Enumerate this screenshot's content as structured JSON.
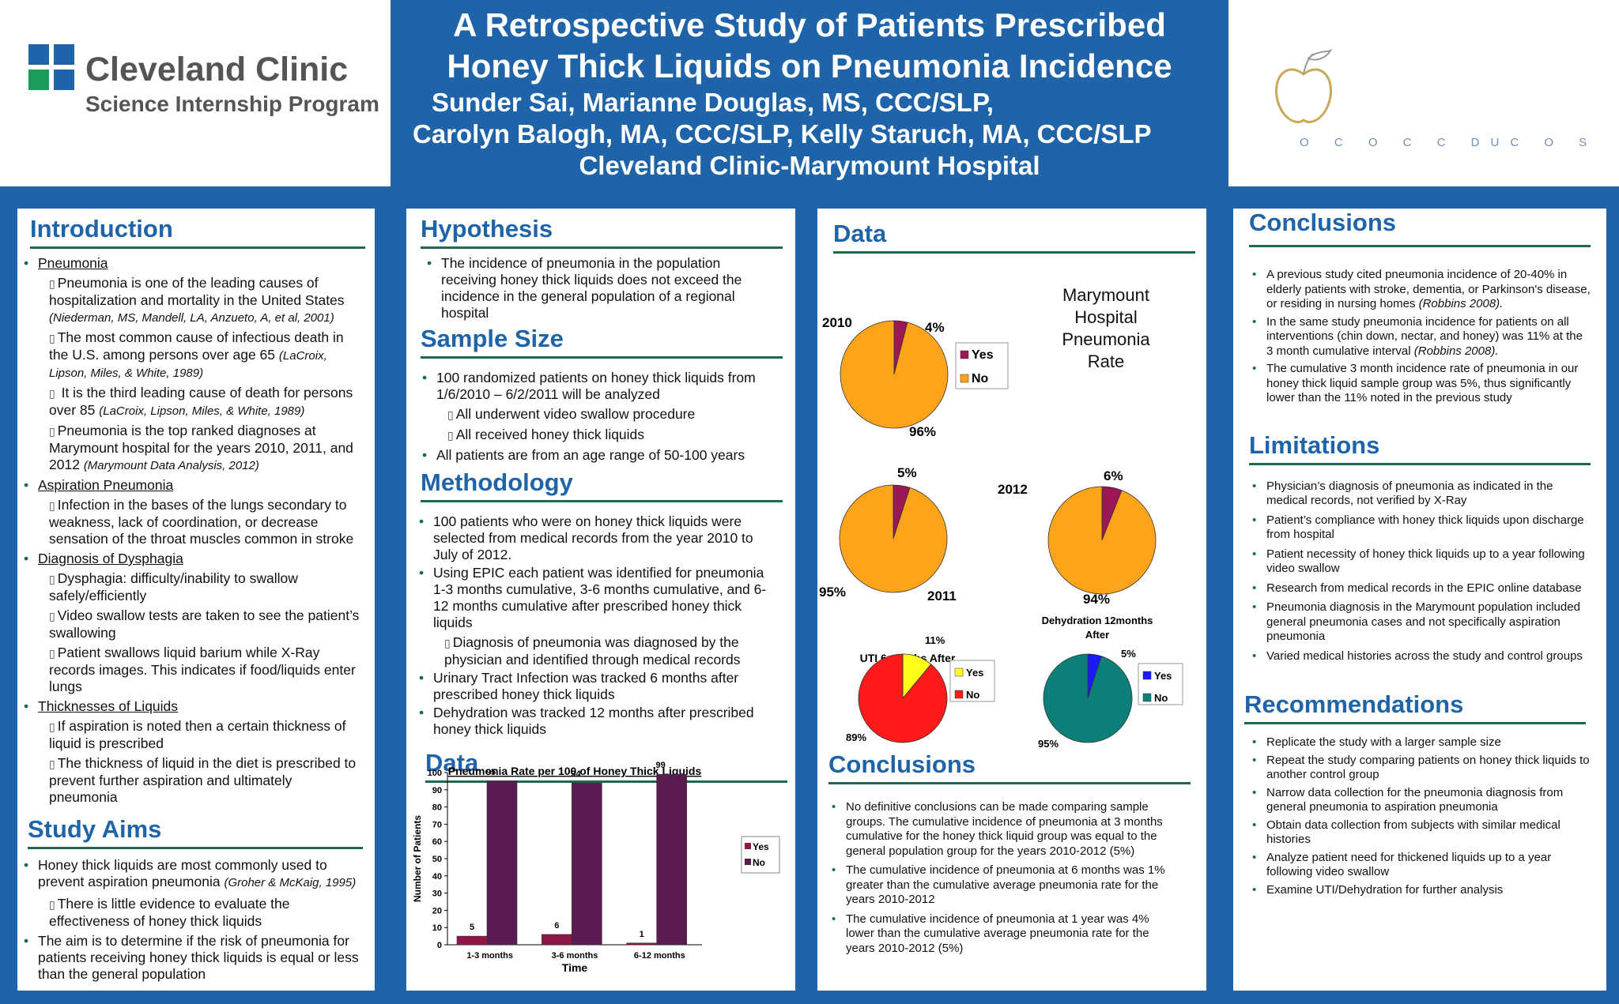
{
  "header": {
    "logo": {
      "name": "Cleveland Clinic",
      "subtitle": "Science Internship Program"
    },
    "title_line1": "A Retrospective Study of Patients Prescribed",
    "title_line2": "Honey Thick Liquids on Pneumonia Incidence",
    "authors_line1": "Sunder Sai, Marianne Douglas, MS, CCC/SLP,",
    "authors_line2": "Carolyn Balogh, MA, CCC/SLP, Kelly Staruch, MA, CCC/SLP",
    "affiliation": "Cleveland Clinic-Marymount Hospital",
    "right_faded_text": "O C O C C DUC O S"
  },
  "introduction": {
    "title": "Introduction",
    "items": [
      {
        "heading": "Pneumonia",
        "subs": [
          {
            "text": "Pneumonia is one of the leading causes of hospitalization and mortality in the United States",
            "cite": "(Niederman, MS, Mandell, LA, Anzueto, A, et al, 2001)"
          },
          {
            "text": "The most common cause of infectious death in the U.S. among persons over age 65",
            "cite": "(LaCroix, Lipson, Miles, & White, 1989)"
          },
          {
            "text": " It is the third leading cause of death for persons over 85",
            "cite": "(LaCroix, Lipson, Miles, & White, 1989)"
          },
          {
            "text": "Pneumonia is the top ranked diagnoses at Marymount hospital for the years 2010, 2011, and 2012",
            "cite": "(Marymount Data Analysis, 2012)"
          }
        ]
      },
      {
        "heading": "Aspiration Pneumonia",
        "subs": [
          {
            "text": "Infection in the bases of the lungs secondary to weakness, lack of coordination, or decrease sensation of the throat muscles common in stroke",
            "cite": ""
          }
        ]
      },
      {
        "heading": "Diagnosis of Dysphagia",
        "subs": [
          {
            "text": "Dysphagia: difficulty/inability to swallow safely/efficiently",
            "cite": ""
          },
          {
            "text": "Video swallow tests are taken to see the patient’s swallowing",
            "cite": ""
          },
          {
            "text": "Patient swallows liquid barium while X-Ray records images. This indicates if food/liquids enter lungs",
            "cite": ""
          }
        ]
      },
      {
        "heading": "Thicknesses of Liquids",
        "subs": [
          {
            "text": "If aspiration is noted then a certain thickness of liquid is prescribed",
            "cite": ""
          },
          {
            "text": "The thickness of liquid in the diet is prescribed to prevent further aspiration and ultimately pneumonia",
            "cite": ""
          }
        ]
      }
    ]
  },
  "study_aims": {
    "title": "Study Aims",
    "item1_text": "Honey thick liquids are most commonly used to prevent aspiration pneumonia",
    "item1_cite": "(Groher & McKaig, 1995)",
    "item1_sub": "There is little evidence to evaluate the effectiveness of honey thick liquids",
    "item2_text": "The aim is to determine if the risk of pneumonia for patients receiving honey thick liquids is equal or less than the general population"
  },
  "hypothesis": {
    "title": "Hypothesis",
    "text": "The incidence of pneumonia in the population receiving honey thick liquids does not exceed the incidence in the general population of a regional hospital"
  },
  "sample_size": {
    "title": "Sample Size",
    "item1": "100 randomized patients on honey thick liquids from 1/6/2010 – 6/2/2011 will be analyzed",
    "sub1": "All underwent video swallow procedure",
    "sub2": "All received honey thick liquids",
    "item2": "All patients are from an age range of 50-100 years"
  },
  "methodology": {
    "title": "Methodology",
    "item1": "100 patients who were on honey thick liquids were selected from medical records from the year 2010 to July of 2012.",
    "item2": "Using EPIC each patient was identified for pneumonia 1-3 months cumulative, 3-6 months cumulative, and 6-12 months cumulative after prescribed honey thick liquids",
    "sub1": "Diagnosis of pneumonia was diagnosed by the physician and identified through medical records",
    "item3": "Urinary Tract Infection was tracked 6 months after prescribed honey thick liquids",
    "item4": "Dehydration was tracked 12 months after prescribed honey thick liquids"
  },
  "data_left": {
    "title": "Data"
  },
  "data_mid": {
    "title": "Data",
    "marymount_label": "Marymount Hospital Pneumonia Rate"
  },
  "conclusions_mid": {
    "title": "Conclusions",
    "items": [
      "No definitive conclusions can be made comparing sample groups. The cumulative incidence of pneumonia at 3 months cumulative for the honey thick liquid group  was equal to the general population group for the years 2010-2012 (5%)",
      "The cumulative incidence of pneumonia at 6 months was 1% greater than the cumulative average pneumonia rate for the years 2010-2012",
      "The cumulative incidence of pneumonia at 1 year was 4% lower than the cumulative average pneumonia rate for the years 2010-2012 (5%)"
    ]
  },
  "conclusions_right": {
    "title": "Conclusions",
    "item1_text": "A previous study cited pneumonia incidence of 20-40% in elderly patients with stroke, dementia, or Parkinson's disease, or residing in nursing homes",
    "item1_cite": "(Robbins 2008).",
    "item2_text": "In the same study pneumonia incidence for patients on all interventions (chin down, nectar, and honey) was 11% at the 3 month cumulative interval",
    "item2_cite": "(Robbins 2008).",
    "item3_text": "The cumulative 3 month incidence rate of pneumonia in our honey thick liquid sample group was 5%, thus significantly lower than the 11% noted in the previous study"
  },
  "limitations": {
    "title": "Limitations",
    "items": [
      "Physician’s diagnosis of pneumonia as indicated in the medical records, not verified by X-Ray",
      "Patient’s compliance with honey thick liquids upon discharge from hospital",
      "Patient necessity of honey thick liquids up to a year following video swallow",
      "Research from medical records in the EPIC online database",
      "Pneumonia diagnosis in the Marymount population included general pneumonia cases and not specifically aspiration pneumonia",
      "Varied medical histories across the study and control groups"
    ]
  },
  "recommendations": {
    "title": "Recommendations",
    "items": [
      "Replicate the study with a larger sample size",
      "Repeat the study comparing patients on honey thick liquids to another control group",
      "Narrow data collection for the pneumonia diagnosis from general pneumonia to aspiration pneumonia",
      "Obtain data collection from subjects with similar medical histories",
      "Analyze patient need for thickened liquids up to a year following video swallow",
      "Examine UTI/Dehydration for further analysis"
    ]
  },
  "colors": {
    "blue": "#1f64a8",
    "green_rule": "#1a6b4d",
    "yes_maroon": "#9b1755",
    "no_orange": "#ffa31a",
    "bar_yes": "#8e1748",
    "bar_no": "#5b1a52",
    "uti_yes": "#ffff1a",
    "uti_no": "#ff1a1a",
    "dehy_yes": "#1a1aff",
    "dehy_no": "#0c7f78"
  },
  "chart_data": [
    {
      "type": "bar",
      "title": "Pneumonia Rate per 100 of Honey Thick Liquids",
      "xlabel": "Time",
      "ylabel": "Number of Patients",
      "ylim": [
        0,
        100
      ],
      "yticks": [
        0,
        10,
        20,
        30,
        40,
        50,
        60,
        70,
        80,
        90,
        100
      ],
      "categories": [
        "1-3 months",
        "3-6 months",
        "6-12 months"
      ],
      "series": [
        {
          "name": "Yes",
          "values": [
            5,
            6,
            1
          ]
        },
        {
          "name": "No",
          "values": [
            95,
            94,
            99
          ]
        }
      ],
      "legend": "right"
    },
    {
      "type": "pie",
      "label": "2010",
      "slices": [
        {
          "name": "Yes",
          "value": 4,
          "label": "4%"
        },
        {
          "name": "No",
          "value": 96,
          "label": "96%"
        }
      ]
    },
    {
      "type": "pie",
      "label": "2011",
      "slices": [
        {
          "name": "Yes",
          "value": 5,
          "label": "5%"
        },
        {
          "name": "No",
          "value": 95,
          "label": "95%"
        }
      ]
    },
    {
      "type": "pie",
      "label": "2012",
      "slices": [
        {
          "name": "Yes",
          "value": 6,
          "label": "6%"
        },
        {
          "name": "No",
          "value": 94,
          "label": "94%"
        }
      ]
    },
    {
      "type": "pie",
      "title": "UTI 6months After",
      "slices": [
        {
          "name": "Yes",
          "value": 11,
          "label": "11%"
        },
        {
          "name": "No",
          "value": 89,
          "label": "89%"
        }
      ],
      "legend": "right"
    },
    {
      "type": "pie",
      "title": "Dehydration 12months After",
      "slices": [
        {
          "name": "Yes",
          "value": 5,
          "label": "5%"
        },
        {
          "name": "No",
          "value": 95,
          "label": "95%"
        }
      ],
      "legend": "right"
    }
  ]
}
